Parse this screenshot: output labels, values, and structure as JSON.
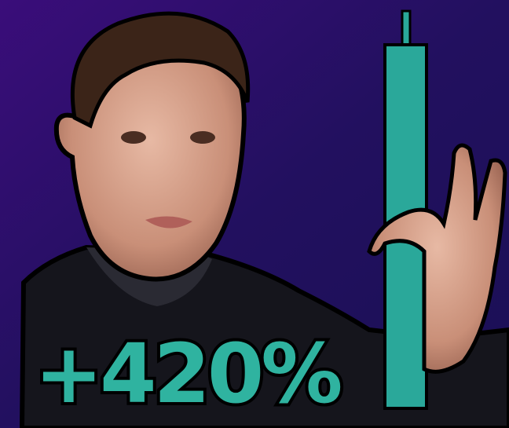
{
  "caption": "+420%"
}
